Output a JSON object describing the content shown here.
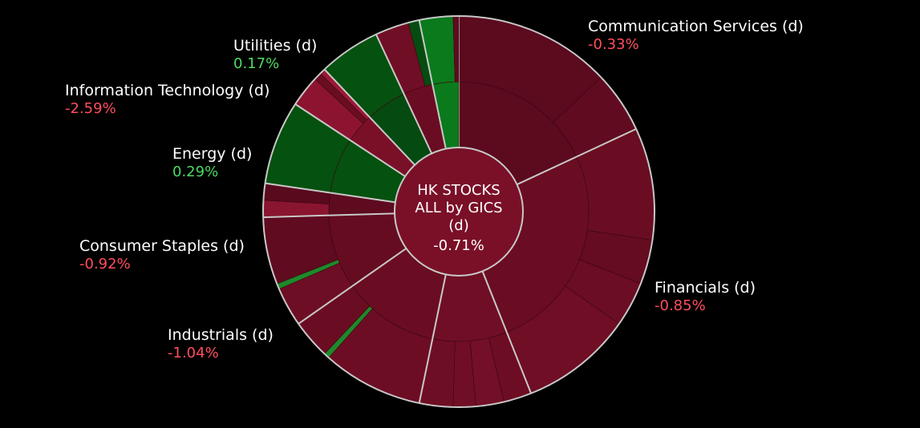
{
  "chart_data": {
    "type": "sunburst",
    "center": {
      "lines": [
        "HK STOCKS",
        "ALL by GICS",
        "(d)"
      ],
      "value": "-0.71%"
    },
    "colors": {
      "background": "#000000",
      "separator": "#c8c8c8",
      "negative_text": "#ff4d5e",
      "positive_text": "#4cd964"
    },
    "sectors": [
      {
        "name": "Communication Services (d)",
        "change": "-0.33%",
        "sign": "neg",
        "weight": 19.5,
        "color": "#5c0a1e",
        "children": [
          {
            "w": 14,
            "c": "#5c0a1e"
          },
          {
            "w": 5.5,
            "c": "#600b20"
          }
        ]
      },
      {
        "name": "Financials (d)",
        "change": "-0.85%",
        "sign": "neg",
        "weight": 28,
        "color": "#6a0d22",
        "children": [
          {
            "w": 10,
            "c": "#6a0d22"
          },
          {
            "w": 4,
            "c": "#650c21"
          },
          {
            "w": 4,
            "c": "#6b0d23"
          },
          {
            "w": 10,
            "c": "#6f0e24"
          }
        ]
      },
      {
        "name": "Industrials (d)",
        "change": "-1.04%",
        "sign": "neg",
        "weight": 10,
        "color": "#700e25",
        "children": [
          {
            "w": 2.5,
            "c": "#6d0d23"
          },
          {
            "w": 2.5,
            "c": "#730f26"
          },
          {
            "w": 2,
            "c": "#700e25"
          },
          {
            "w": 3,
            "c": "#6e0e24"
          }
        ]
      },
      {
        "name": "",
        "change": "",
        "sign": "neg",
        "weight": 13,
        "color": "#6a0d22",
        "children": [
          {
            "w": 9,
            "c": "#6d0d24"
          },
          {
            "w": 0.5,
            "c": "#1d8a2a"
          },
          {
            "w": 3.5,
            "c": "#6a0d22"
          }
        ]
      },
      {
        "name": "Consumer Staples (d)",
        "change": "-0.92%",
        "sign": "neg",
        "weight": 10,
        "color": "#650c21",
        "children": [
          {
            "w": 3.5,
            "c": "#6e0e24"
          },
          {
            "w": 0.5,
            "c": "#1d8a2a"
          },
          {
            "w": 6,
            "c": "#600b20"
          }
        ]
      },
      {
        "name": "",
        "change": "",
        "sign": "neg",
        "weight": 3,
        "color": "#5e0b1f",
        "children": [
          {
            "w": 1.5,
            "c": "#8a1530"
          },
          {
            "w": 1.5,
            "c": "#5a0a1d"
          }
        ]
      },
      {
        "name": "Energy (d)",
        "change": "0.29%",
        "sign": "pos",
        "weight": 7.5,
        "color": "#05510f",
        "children": [
          {
            "w": 7.5,
            "c": "#05510f"
          }
        ]
      },
      {
        "name": "Information Technology (d)",
        "change": "-2.59%",
        "sign": "neg",
        "weight": 4,
        "color": "#7a1028",
        "children": [
          {
            "w": 2.8,
            "c": "#8c1430"
          },
          {
            "w": 0.7,
            "c": "#6a0d22"
          },
          {
            "w": 0.5,
            "c": "#9a1836"
          }
        ]
      },
      {
        "name": "Utilities (d)",
        "change": "0.17%",
        "sign": "pos",
        "weight": 5.5,
        "color": "#054a10",
        "children": [
          {
            "w": 5.5,
            "c": "#05510f"
          }
        ]
      },
      {
        "name": "",
        "change": "",
        "sign": "neg",
        "weight": 4,
        "color": "#6a0d22",
        "children": [
          {
            "w": 3,
            "c": "#700e25"
          },
          {
            "w": 1,
            "c": "#064c11"
          }
        ]
      },
      {
        "name": "",
        "change": "",
        "sign": "pos",
        "weight": 3.5,
        "color": "#0a7a1c",
        "children": [
          {
            "w": 3,
            "c": "#0a7a1c"
          },
          {
            "w": 0.5,
            "c": "#600b20"
          }
        ]
      }
    ]
  }
}
